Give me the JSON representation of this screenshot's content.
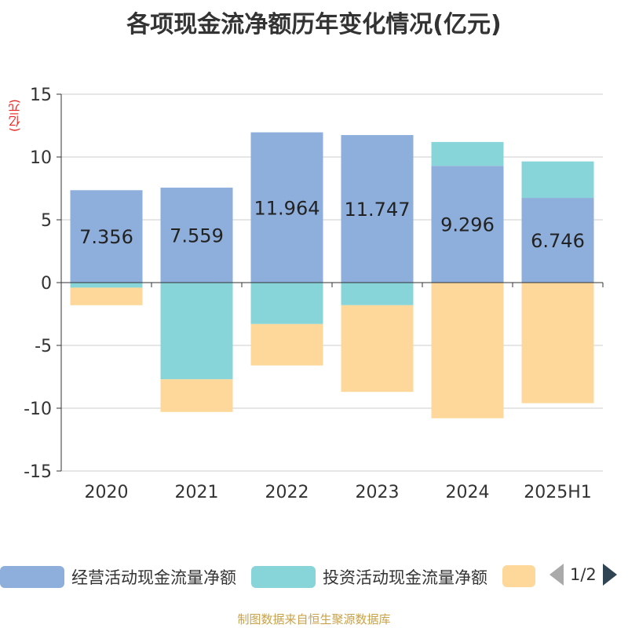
{
  "title": "各项现金流净额历年变化情况(亿元)",
  "y_unit": "(亿元)",
  "source_text": "制图数据来自恒生聚源数据库",
  "pager": {
    "text": "1/2",
    "prev_icon": "triangle-left-icon",
    "next_icon": "triangle-right-icon"
  },
  "chart_data": {
    "type": "bar",
    "stacked": true,
    "categories": [
      "2020",
      "2021",
      "2022",
      "2023",
      "2024",
      "2025H1"
    ],
    "ylim": [
      -15,
      15
    ],
    "yticks": [
      15,
      10,
      5,
      0,
      -5,
      -10,
      -15
    ],
    "grid": true,
    "legend_position": "bottom",
    "series": [
      {
        "name": "经营活动现金流量净额",
        "color": "#8eaedb",
        "values": [
          7.356,
          7.559,
          11.964,
          11.747,
          9.296,
          6.746
        ],
        "labels": [
          "7.356",
          "7.559",
          "11.964",
          "11.747",
          "9.296",
          "6.746"
        ]
      },
      {
        "name": "投资活动现金流量净额",
        "color": "#87d5d8",
        "values": [
          -0.4,
          -7.7,
          -3.3,
          -1.8,
          1.9,
          2.9
        ]
      },
      {
        "name": "",
        "color": "#fed89a",
        "values": [
          -1.4,
          -2.6,
          -3.3,
          -6.9,
          -10.8,
          -9.6
        ]
      }
    ]
  }
}
